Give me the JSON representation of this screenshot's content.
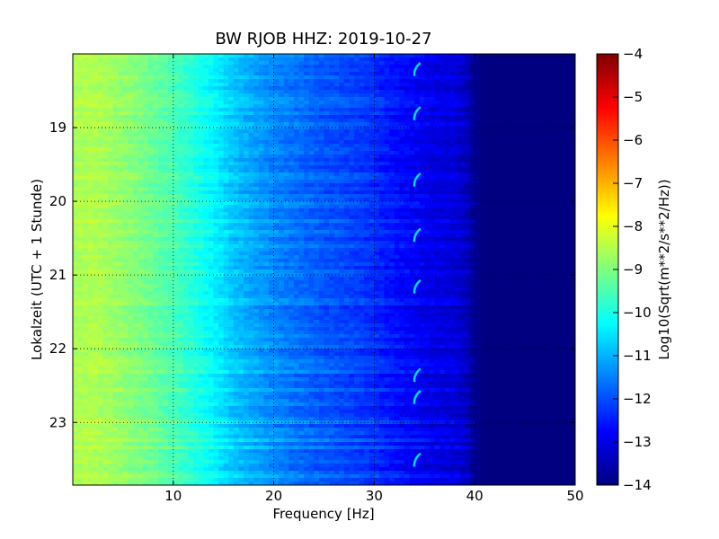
{
  "chart_data": {
    "type": "heatmap",
    "title": "BW RJOB HHZ: 2019-10-27",
    "xlabel": "Frequency [Hz]",
    "ylabel": "Lokalzeit (UTC + 1 Stunde)",
    "xlim": [
      0,
      50
    ],
    "ylim": [
      18.0,
      23.85
    ],
    "x_ticks": [
      10,
      20,
      30,
      40,
      50
    ],
    "y_ticks": [
      19,
      20,
      21,
      22,
      23
    ],
    "grid": true,
    "colormap": "jet",
    "colorbar": {
      "label": "Log10(Sqrt(m**2/s**2/Hz))",
      "range": [
        -14,
        -4
      ],
      "ticks": [
        -4,
        -5,
        -6,
        -7,
        -8,
        -9,
        -10,
        -11,
        -12,
        -13,
        -14
      ]
    },
    "spectrum_profile": {
      "frequency_hz": [
        0,
        2,
        5,
        8,
        10,
        12,
        14,
        16,
        18,
        20,
        22,
        25,
        28,
        30,
        32,
        34,
        36,
        38,
        39,
        40,
        41,
        45,
        50
      ],
      "log_amplitude": [
        -8.6,
        -8.5,
        -8.8,
        -9.2,
        -9.5,
        -9.9,
        -10.3,
        -10.8,
        -11.1,
        -11.4,
        -11.6,
        -11.9,
        -12.1,
        -12.3,
        -12.6,
        -12.8,
        -13.0,
        -13.1,
        -13.3,
        -13.8,
        -14.0,
        -14.0,
        -14.0
      ]
    },
    "tonal_line": {
      "frequency_hz": 34,
      "bursts_hours": [
        18.2,
        18.8,
        19.7,
        20.45,
        21.15,
        22.35,
        22.65,
        23.5
      ]
    }
  }
}
